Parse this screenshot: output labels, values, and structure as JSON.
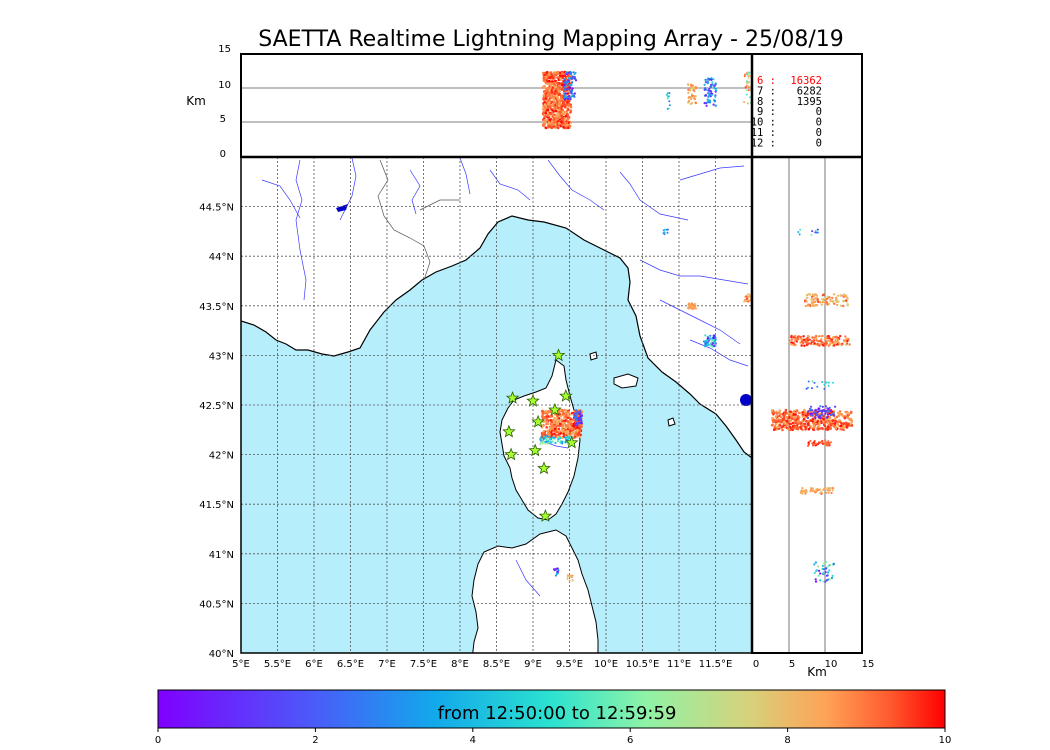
{
  "title": "SAETTA Realtime Lightning Mapping Array - 25/08/19",
  "colors": {
    "sea": "#b7eefb",
    "land": "#ffffff",
    "rivers": "#3a3aff",
    "borders": "#555555",
    "grid": "#555555",
    "highlight_count": "#ff0000"
  },
  "top_panel": {
    "y_label": "Km",
    "y_ticks": [
      "0",
      "5",
      "10",
      "15"
    ],
    "counts": [
      {
        "label": "6 :",
        "value": "16362",
        "highlight": true
      },
      {
        "label": "7 :",
        "value": "6282",
        "highlight": false
      },
      {
        "label": "8 :",
        "value": "1395",
        "highlight": false
      },
      {
        "label": "9 :",
        "value": "0",
        "highlight": false
      },
      {
        "label": "10 :",
        "value": "0",
        "highlight": false
      },
      {
        "label": "11 :",
        "value": "0",
        "highlight": false
      },
      {
        "label": "12 :",
        "value": "0",
        "highlight": false
      }
    ]
  },
  "map": {
    "lon_ticks": [
      "5°E",
      "5.5°E",
      "6°E",
      "6.5°E",
      "7°E",
      "7.5°E",
      "8°E",
      "8.5°E",
      "9°E",
      "9.5°E",
      "10°E",
      "10.5°E",
      "11°E",
      "11.5°E"
    ],
    "lat_ticks": [
      "40°N",
      "40.5°N",
      "41°N",
      "41.5°N",
      "42°N",
      "42.5°N",
      "43°N",
      "43.5°N",
      "44°N",
      "44.5°N"
    ],
    "lon_range": [
      5,
      12
    ],
    "lat_range": [
      40,
      45
    ],
    "station_marker": "star-icon",
    "stations": [
      {
        "lon": 9.35,
        "lat": 43.0
      },
      {
        "lon": 8.72,
        "lat": 42.57
      },
      {
        "lon": 9.0,
        "lat": 42.54
      },
      {
        "lon": 9.45,
        "lat": 42.59
      },
      {
        "lon": 9.3,
        "lat": 42.45
      },
      {
        "lon": 9.07,
        "lat": 42.33
      },
      {
        "lon": 8.67,
        "lat": 42.23
      },
      {
        "lon": 9.53,
        "lat": 42.12
      },
      {
        "lon": 9.03,
        "lat": 42.04
      },
      {
        "lon": 8.7,
        "lat": 42.0
      },
      {
        "lon": 9.15,
        "lat": 41.86
      },
      {
        "lon": 9.17,
        "lat": 41.38
      }
    ]
  },
  "side_panel": {
    "x_label": "Km",
    "x_ticks": [
      "0",
      "5",
      "10",
      "15"
    ]
  },
  "colorbar": {
    "label": "from 12:50:00 to 12:59:59",
    "ticks": [
      "0",
      "2",
      "4",
      "6",
      "8",
      "10"
    ],
    "range": [
      0,
      10
    ]
  }
}
